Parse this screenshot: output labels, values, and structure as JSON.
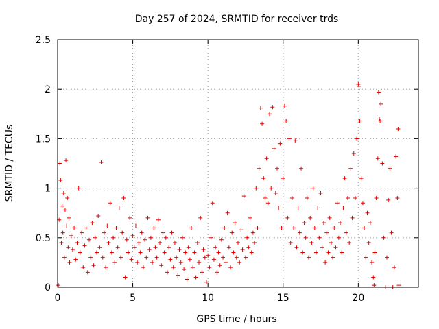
{
  "chart_data": {
    "type": "scatter",
    "title": "Day 257 of 2024, SRMTID for receiver trds",
    "xlabel": "GPS time / hours",
    "ylabel": "SRMTID / TECUs",
    "xlim": [
      0,
      24
    ],
    "ylim": [
      0,
      2.5
    ],
    "x_ticks": [
      0,
      5,
      10,
      15,
      20
    ],
    "x_tick_labels": [
      "0",
      "5",
      "10",
      "15",
      "20"
    ],
    "y_ticks": [
      0,
      0.5,
      1,
      1.5,
      2,
      2.5
    ],
    "y_tick_labels": [
      "0",
      "0.5",
      "1",
      "1.5",
      "2",
      "2.5"
    ],
    "grid": true,
    "marker": "+",
    "color": "#e00000",
    "series": [
      {
        "name": "SRMTID",
        "points": [
          [
            0.05,
            0.02
          ],
          [
            0.1,
            0.68
          ],
          [
            0.15,
            1.25
          ],
          [
            0.2,
            1.08
          ],
          [
            0.25,
            0.45
          ],
          [
            0.3,
            0.82
          ],
          [
            0.35,
            0.55
          ],
          [
            0.4,
            0.95
          ],
          [
            0.45,
            0.3
          ],
          [
            0.5,
            0.78
          ],
          [
            0.55,
            1.28
          ],
          [
            0.6,
            0.62
          ],
          [
            0.65,
            0.9
          ],
          [
            0.7,
            0.4
          ],
          [
            0.75,
            0.7
          ],
          [
            0.8,
            0.25
          ],
          [
            0.9,
            0.52
          ],
          [
            1.0,
            0.38
          ],
          [
            1.1,
            0.6
          ],
          [
            1.2,
            0.28
          ],
          [
            1.3,
            0.45
          ],
          [
            1.4,
            1.0
          ],
          [
            1.5,
            0.35
          ],
          [
            1.6,
            0.55
          ],
          [
            1.7,
            0.2
          ],
          [
            1.8,
            0.42
          ],
          [
            1.9,
            0.6
          ],
          [
            2.0,
            0.15
          ],
          [
            2.1,
            0.48
          ],
          [
            2.2,
            0.3
          ],
          [
            2.3,
            0.65
          ],
          [
            2.4,
            0.22
          ],
          [
            2.5,
            0.5
          ],
          [
            2.6,
            0.35
          ],
          [
            2.7,
            0.72
          ],
          [
            2.8,
            0.4
          ],
          [
            2.9,
            1.26
          ],
          [
            3.0,
            0.3
          ],
          [
            3.1,
            0.55
          ],
          [
            3.2,
            0.2
          ],
          [
            3.3,
            0.62
          ],
          [
            3.4,
            0.45
          ],
          [
            3.5,
            0.85
          ],
          [
            3.6,
            0.35
          ],
          [
            3.7,
            0.5
          ],
          [
            3.8,
            0.25
          ],
          [
            3.9,
            0.6
          ],
          [
            4.0,
            0.4
          ],
          [
            4.1,
            0.8
          ],
          [
            4.2,
            0.3
          ],
          [
            4.3,
            0.55
          ],
          [
            4.4,
            0.9
          ],
          [
            4.5,
            0.1
          ],
          [
            4.6,
            0.48
          ],
          [
            4.7,
            0.35
          ],
          [
            4.8,
            0.7
          ],
          [
            4.9,
            0.28
          ],
          [
            5.0,
            0.52
          ],
          [
            5.1,
            0.4
          ],
          [
            5.2,
            0.62
          ],
          [
            5.3,
            0.25
          ],
          [
            5.4,
            0.45
          ],
          [
            5.5,
            0.35
          ],
          [
            5.6,
            0.55
          ],
          [
            5.7,
            0.2
          ],
          [
            5.8,
            0.48
          ],
          [
            5.9,
            0.3
          ],
          [
            6.0,
            0.7
          ],
          [
            6.1,
            0.38
          ],
          [
            6.2,
            0.5
          ],
          [
            6.3,
            0.25
          ],
          [
            6.4,
            0.6
          ],
          [
            6.5,
            0.4
          ],
          [
            6.6,
            0.3
          ],
          [
            6.7,
            0.68
          ],
          [
            6.8,
            0.45
          ],
          [
            6.9,
            0.22
          ],
          [
            7.0,
            0.55
          ],
          [
            7.1,
            0.35
          ],
          [
            7.2,
            0.5
          ],
          [
            7.3,
            0.15
          ],
          [
            7.4,
            0.4
          ],
          [
            7.5,
            0.28
          ],
          [
            7.6,
            0.55
          ],
          [
            7.7,
            0.2
          ],
          [
            7.8,
            0.45
          ],
          [
            7.9,
            0.3
          ],
          [
            8.0,
            0.12
          ],
          [
            8.1,
            0.38
          ],
          [
            8.2,
            0.25
          ],
          [
            8.3,
            0.5
          ],
          [
            8.4,
            0.18
          ],
          [
            8.5,
            0.35
          ],
          [
            8.6,
            0.08
          ],
          [
            8.7,
            0.4
          ],
          [
            8.8,
            0.28
          ],
          [
            8.9,
            0.6
          ],
          [
            9.0,
            0.2
          ],
          [
            9.1,
            0.35
          ],
          [
            9.2,
            0.1
          ],
          [
            9.3,
            0.45
          ],
          [
            9.4,
            0.25
          ],
          [
            9.5,
            0.7
          ],
          [
            9.6,
            0.15
          ],
          [
            9.7,
            0.38
          ],
          [
            9.8,
            0.3
          ],
          [
            9.9,
            0.05
          ],
          [
            10.0,
            0.32
          ],
          [
            10.1,
            0.2
          ],
          [
            10.2,
            0.5
          ],
          [
            10.3,
            0.85
          ],
          [
            10.4,
            0.28
          ],
          [
            10.5,
            0.4
          ],
          [
            10.6,
            0.15
          ],
          [
            10.7,
            0.35
          ],
          [
            10.8,
            0.22
          ],
          [
            10.9,
            0.48
          ],
          [
            11.0,
            0.3
          ],
          [
            11.1,
            0.6
          ],
          [
            11.2,
            0.25
          ],
          [
            11.3,
            0.75
          ],
          [
            11.4,
            0.4
          ],
          [
            11.5,
            0.2
          ],
          [
            11.6,
            0.55
          ],
          [
            11.7,
            0.35
          ],
          [
            11.8,
            0.65
          ],
          [
            11.9,
            0.3
          ],
          [
            12.0,
            0.45
          ],
          [
            12.1,
            0.25
          ],
          [
            12.2,
            0.58
          ],
          [
            12.3,
            0.38
          ],
          [
            12.4,
            0.92
          ],
          [
            12.5,
            0.3
          ],
          [
            12.6,
            0.5
          ],
          [
            12.7,
            0.4
          ],
          [
            12.8,
            0.7
          ],
          [
            12.9,
            0.35
          ],
          [
            13.0,
            0.55
          ],
          [
            13.1,
            0.45
          ],
          [
            13.2,
            1.0
          ],
          [
            13.3,
            0.6
          ],
          [
            13.4,
            1.2
          ],
          [
            13.5,
            1.81
          ],
          [
            13.6,
            1.65
          ],
          [
            13.7,
            1.1
          ],
          [
            13.8,
            0.9
          ],
          [
            13.9,
            1.3
          ],
          [
            14.0,
            0.85
          ],
          [
            14.1,
            1.75
          ],
          [
            14.2,
            1.0
          ],
          [
            14.3,
            1.82
          ],
          [
            14.4,
            1.4
          ],
          [
            14.5,
            0.95
          ],
          [
            14.6,
            1.2
          ],
          [
            14.7,
            0.8
          ],
          [
            14.8,
            1.45
          ],
          [
            14.9,
            0.6
          ],
          [
            15.0,
            1.1
          ],
          [
            15.1,
            1.83
          ],
          [
            15.2,
            1.68
          ],
          [
            15.3,
            0.7
          ],
          [
            15.4,
            1.5
          ],
          [
            15.5,
            0.45
          ],
          [
            15.6,
            0.9
          ],
          [
            15.7,
            0.6
          ],
          [
            15.8,
            1.48
          ],
          [
            15.9,
            0.4
          ],
          [
            16.0,
            0.8
          ],
          [
            16.1,
            0.55
          ],
          [
            16.2,
            1.2
          ],
          [
            16.3,
            0.35
          ],
          [
            16.4,
            0.65
          ],
          [
            16.5,
            0.5
          ],
          [
            16.6,
            0.9
          ],
          [
            16.7,
            0.3
          ],
          [
            16.8,
            0.7
          ],
          [
            16.9,
            0.45
          ],
          [
            17.0,
            1.0
          ],
          [
            17.1,
            0.6
          ],
          [
            17.2,
            0.35
          ],
          [
            17.3,
            0.8
          ],
          [
            17.4,
            0.5
          ],
          [
            17.5,
            0.95
          ],
          [
            17.6,
            0.4
          ],
          [
            17.7,
            0.65
          ],
          [
            17.8,
            0.25
          ],
          [
            17.9,
            0.55
          ],
          [
            18.0,
            0.35
          ],
          [
            18.1,
            0.7
          ],
          [
            18.2,
            0.45
          ],
          [
            18.3,
            0.3
          ],
          [
            18.4,
            0.6
          ],
          [
            18.5,
            0.4
          ],
          [
            18.6,
            0.85
          ],
          [
            18.7,
            0.5
          ],
          [
            18.8,
            0.65
          ],
          [
            18.9,
            0.35
          ],
          [
            19.0,
            0.8
          ],
          [
            19.1,
            1.1
          ],
          [
            19.2,
            0.55
          ],
          [
            19.3,
            0.9
          ],
          [
            19.4,
            0.45
          ],
          [
            19.5,
            1.2
          ],
          [
            19.6,
            0.7
          ],
          [
            19.7,
            1.35
          ],
          [
            19.8,
            0.9
          ],
          [
            19.9,
            1.5
          ],
          [
            20.0,
            2.05
          ],
          [
            20.05,
            2.03
          ],
          [
            20.1,
            1.68
          ],
          [
            20.2,
            1.1
          ],
          [
            20.3,
            0.85
          ],
          [
            20.4,
            0.6
          ],
          [
            20.5,
            0.3
          ],
          [
            20.6,
            0.75
          ],
          [
            20.7,
            0.45
          ],
          [
            20.8,
            0.65
          ],
          [
            20.9,
            0.25
          ],
          [
            21.0,
            0.1
          ],
          [
            21.05,
            0.02
          ],
          [
            21.1,
            0.35
          ],
          [
            21.2,
            0.9
          ],
          [
            21.3,
            1.3
          ],
          [
            21.35,
            1.97
          ],
          [
            21.4,
            1.7
          ],
          [
            21.45,
            1.68
          ],
          [
            21.5,
            1.85
          ],
          [
            21.6,
            1.25
          ],
          [
            21.7,
            0.5
          ],
          [
            21.8,
            0.0
          ],
          [
            21.9,
            0.3
          ],
          [
            22.0,
            0.88
          ],
          [
            22.1,
            1.2
          ],
          [
            22.2,
            0.55
          ],
          [
            22.3,
            0.0
          ],
          [
            22.4,
            0.2
          ],
          [
            22.5,
            1.32
          ],
          [
            22.6,
            0.9
          ],
          [
            22.65,
            1.6
          ],
          [
            22.7,
            0.02
          ]
        ]
      }
    ]
  }
}
